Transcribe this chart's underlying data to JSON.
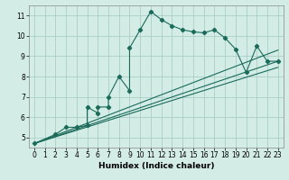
{
  "xlabel": "Humidex (Indice chaleur)",
  "bg_color": "#d4ece6",
  "grid_color": "#aacfc8",
  "line_color": "#1a6b5a",
  "xlim": [
    -0.5,
    23.5
  ],
  "ylim": [
    4.5,
    11.5
  ],
  "xticks": [
    0,
    1,
    2,
    3,
    4,
    5,
    6,
    7,
    8,
    9,
    10,
    11,
    12,
    13,
    14,
    15,
    16,
    17,
    18,
    19,
    20,
    21,
    22,
    23
  ],
  "yticks": [
    5,
    6,
    7,
    8,
    9,
    10,
    11
  ],
  "series": [
    [
      0,
      4.7
    ],
    [
      2,
      5.15
    ],
    [
      3,
      5.5
    ],
    [
      4,
      5.5
    ],
    [
      5,
      5.6
    ],
    [
      5,
      6.5
    ],
    [
      6,
      6.2
    ],
    [
      6,
      6.5
    ],
    [
      7,
      6.5
    ],
    [
      7,
      7.0
    ],
    [
      8,
      8.0
    ],
    [
      9,
      7.3
    ],
    [
      9,
      9.4
    ],
    [
      10,
      10.3
    ],
    [
      11,
      11.2
    ],
    [
      12,
      10.8
    ],
    [
      13,
      10.5
    ],
    [
      14,
      10.3
    ],
    [
      15,
      10.2
    ],
    [
      16,
      10.15
    ],
    [
      17,
      10.3
    ],
    [
      18,
      9.9
    ],
    [
      19,
      9.35
    ],
    [
      20,
      8.2
    ],
    [
      21,
      9.5
    ],
    [
      22,
      8.75
    ],
    [
      23,
      8.75
    ]
  ],
  "line1": [
    [
      0,
      4.7
    ],
    [
      23,
      9.3
    ]
  ],
  "line2": [
    [
      0,
      4.7
    ],
    [
      23,
      8.75
    ]
  ],
  "line3": [
    [
      0,
      4.7
    ],
    [
      23,
      8.45
    ]
  ]
}
